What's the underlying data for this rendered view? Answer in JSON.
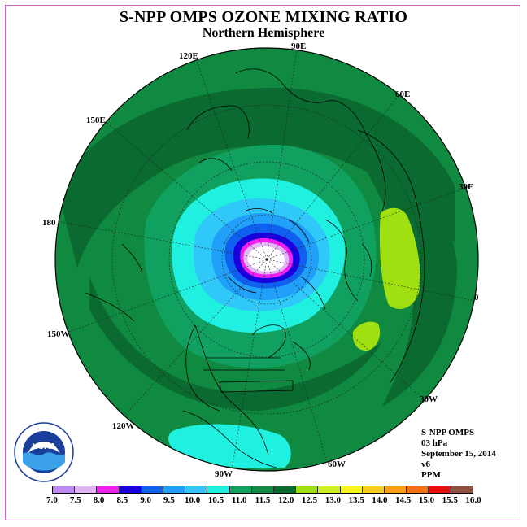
{
  "title": "S-NPP OMPS OZONE MIXING RATIO",
  "subtitle": "Northern Hemisphere",
  "longitude_labels": [
    {
      "text": "90E",
      "id": "lon-90e"
    },
    {
      "text": "120E",
      "id": "lon-120e"
    },
    {
      "text": "60E",
      "id": "lon-60e"
    },
    {
      "text": "150E",
      "id": "lon-150e"
    },
    {
      "text": "30E",
      "id": "lon-30e"
    },
    {
      "text": "180",
      "id": "lon-180"
    },
    {
      "text": "0",
      "id": "lon-0"
    },
    {
      "text": "150W",
      "id": "lon-150w"
    },
    {
      "text": "30W",
      "id": "lon-30w"
    },
    {
      "text": "120W",
      "id": "lon-120w"
    },
    {
      "text": "60W",
      "id": "lon-60w"
    },
    {
      "text": "90W",
      "id": "lon-90w"
    }
  ],
  "info": {
    "instrument": "S-NPP OMPS",
    "level": "03 hPa",
    "date": "September 15, 2014",
    "version": "v6",
    "units": "PPM"
  },
  "logo": {
    "text": "NOAA",
    "ring_text": "NATIONAL OCEANIC AND ATMOSPHERIC ADMINISTRATION"
  },
  "colorbar": {
    "labels": [
      "7.0",
      "7.5",
      "8.0",
      "8.5",
      "9.0",
      "9.5",
      "10.0",
      "10.5",
      "11.0",
      "11.5",
      "12.0",
      "12.5",
      "13.0",
      "13.5",
      "14.0",
      "14.5",
      "15.0",
      "15.5",
      "16.0"
    ],
    "colors": [
      "#c08af0",
      "#e0b4f5",
      "#f020f0",
      "#1a00e0",
      "#1060f0",
      "#20a0f8",
      "#30c8f8",
      "#20f0e0",
      "#10a060",
      "#108a40",
      "#0a6a30",
      "#a0e010",
      "#d0f020",
      "#f8f820",
      "#f8d020",
      "#f8a010",
      "#f87010",
      "#e81010",
      "#905040"
    ]
  }
}
